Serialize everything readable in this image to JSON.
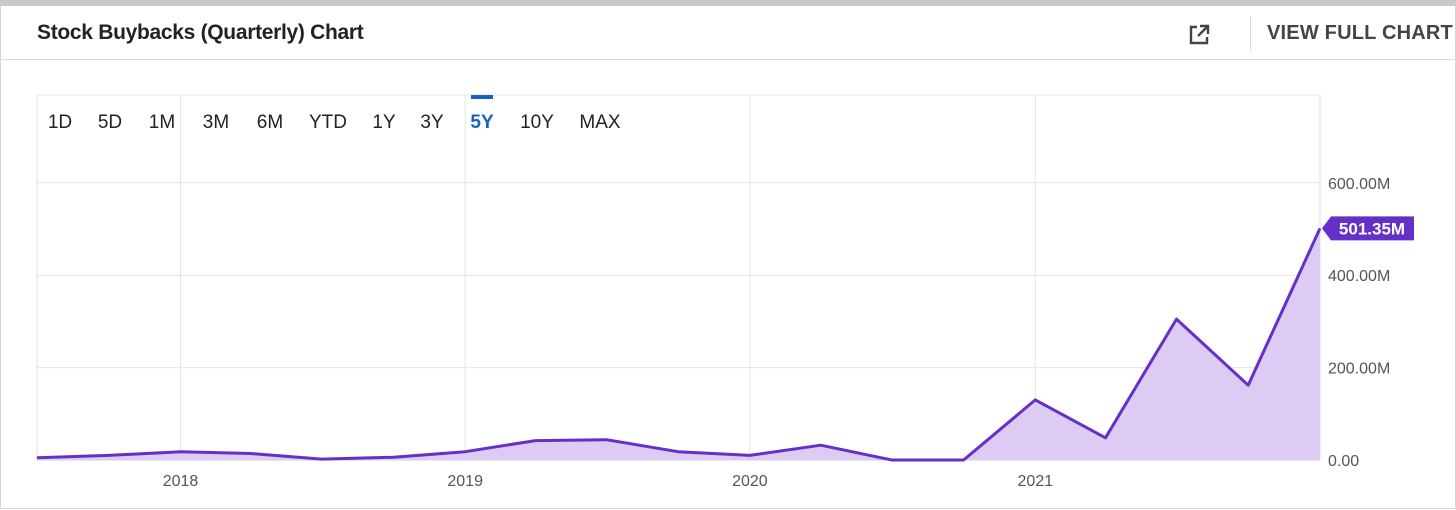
{
  "header": {
    "title": "Stock Buybacks (Quarterly) Chart",
    "view_full_label": "VIEW FULL CHART"
  },
  "ranges": [
    "1D",
    "5D",
    "1M",
    "3M",
    "6M",
    "YTD",
    "1Y",
    "3Y",
    "5Y",
    "10Y",
    "MAX"
  ],
  "active_range": "5Y",
  "colors": {
    "line": "#6630c8",
    "fill": "#dccbf2",
    "active": "#1565c0"
  },
  "chart_data": {
    "type": "area",
    "title": "Stock Buybacks (Quarterly) Chart",
    "xlabel": "",
    "ylabel": "",
    "x": [
      "2017-07-01",
      "2017-10-01",
      "2018-01-01",
      "2018-04-01",
      "2018-07-01",
      "2018-10-01",
      "2019-01-01",
      "2019-04-01",
      "2019-07-01",
      "2019-10-01",
      "2020-01-01",
      "2020-04-01",
      "2020-07-01",
      "2020-10-01",
      "2021-01-01",
      "2021-04-01",
      "2021-07-01",
      "2021-10-01",
      "2022-01-01"
    ],
    "values": [
      5,
      10,
      18,
      14,
      2,
      6,
      18,
      42,
      44,
      18,
      10,
      32,
      0,
      0,
      130,
      48,
      305,
      162,
      501.35
    ],
    "unit": "M",
    "ylim": [
      0,
      790
    ],
    "yticks": [
      0,
      200,
      400,
      600
    ],
    "ytick_labels": [
      "0.00",
      "200.00M",
      "400.00M",
      "600.00M"
    ],
    "xticks": [
      "2018-01-01",
      "2019-01-01",
      "2020-01-01",
      "2021-01-01"
    ],
    "xtick_labels": [
      "2018",
      "2019",
      "2020",
      "2021"
    ],
    "last_value_label": "501.35M",
    "grid": true,
    "legend": "none"
  }
}
